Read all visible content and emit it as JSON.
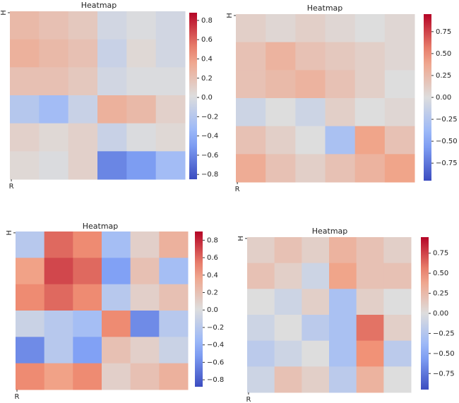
{
  "chart_data": [
    {
      "type": "heatmap",
      "title": "Heatmap",
      "colormap": "coolwarm",
      "categories": [
        "R",
        null,
        null,
        null,
        null,
        null
      ],
      "y_categories": [
        "H",
        null,
        null,
        null,
        null,
        null
      ],
      "zlim": [
        -0.85,
        0.88
      ],
      "zticks": [
        0.8,
        0.6,
        0.4,
        0.2,
        {
          "value": 0,
          "label": "0.0"
        },
        {
          "value": -0.2,
          "label": "−0.2"
        },
        {
          "value": -0.4,
          "label": "−0.4"
        },
        {
          "value": -0.6,
          "label": "−0.6"
        },
        {
          "value": -0.8,
          "label": "−0.8"
        }
      ],
      "values": [
        [
          0.25,
          0.2,
          0.15,
          -0.05,
          0.0,
          -0.05
        ],
        [
          0.3,
          0.25,
          0.2,
          -0.1,
          0.05,
          -0.05
        ],
        [
          0.2,
          0.2,
          0.15,
          -0.05,
          0.0,
          0.0
        ],
        [
          -0.2,
          -0.3,
          -0.1,
          0.3,
          0.25,
          0.1
        ],
        [
          0.1,
          0.05,
          0.1,
          -0.1,
          0.0,
          0.05
        ],
        [
          0.05,
          0.0,
          0.1,
          -0.6,
          -0.5,
          -0.3
        ]
      ]
    },
    {
      "type": "heatmap",
      "title": "Heatmap",
      "colormap": "coolwarm",
      "categories": [
        "R",
        null,
        null,
        null,
        null,
        null
      ],
      "y_categories": [
        "H",
        null,
        null,
        null,
        null,
        null
      ],
      "zlim": [
        -0.95,
        0.95
      ],
      "zticks": [
        0.75,
        {
          "value": 0.5,
          "label": "0.50"
        },
        0.25,
        {
          "value": 0,
          "label": "0.00"
        },
        {
          "value": -0.25,
          "label": "−0.25"
        },
        {
          "value": -0.5,
          "label": "−0.50"
        },
        {
          "value": -0.75,
          "label": "−0.75"
        }
      ],
      "values": [
        [
          0.1,
          0.05,
          0.1,
          0.05,
          0.0,
          0.05
        ],
        [
          0.2,
          0.3,
          0.2,
          0.15,
          0.1,
          0.05
        ],
        [
          0.2,
          0.25,
          0.3,
          0.2,
          0.1,
          0.0
        ],
        [
          -0.1,
          0.0,
          -0.1,
          0.1,
          0.0,
          0.05
        ],
        [
          0.2,
          0.1,
          0.0,
          -0.3,
          0.4,
          0.2
        ],
        [
          0.35,
          0.2,
          0.1,
          0.2,
          0.3,
          0.4
        ]
      ]
    },
    {
      "type": "heatmap",
      "title": "Heatmap",
      "colormap": "coolwarm",
      "categories": [
        "R",
        null,
        null,
        null,
        null,
        null
      ],
      "y_categories": [
        "H",
        null,
        null,
        null,
        null,
        null
      ],
      "zlim": [
        -0.88,
        0.9
      ],
      "zticks": [
        0.8,
        0.6,
        0.4,
        0.2,
        {
          "value": 0,
          "label": "0.0"
        },
        {
          "value": -0.2,
          "label": "−0.2"
        },
        {
          "value": -0.4,
          "label": "−0.4"
        },
        {
          "value": -0.6,
          "label": "−0.6"
        },
        {
          "value": -0.8,
          "label": "−0.8"
        }
      ],
      "values": [
        [
          -0.2,
          0.6,
          0.5,
          -0.3,
          0.1,
          0.3
        ],
        [
          0.4,
          0.7,
          0.6,
          -0.5,
          0.2,
          -0.3
        ],
        [
          0.5,
          0.6,
          0.5,
          -0.2,
          0.1,
          0.2
        ],
        [
          -0.1,
          -0.2,
          -0.3,
          0.5,
          -0.6,
          -0.2
        ],
        [
          -0.6,
          -0.2,
          -0.5,
          0.2,
          0.1,
          -0.1
        ],
        [
          0.5,
          0.4,
          0.5,
          0.1,
          0.2,
          0.3
        ]
      ]
    },
    {
      "type": "heatmap",
      "title": "Heatmap",
      "colormap": "coolwarm",
      "categories": [
        "R",
        null,
        null,
        null,
        null,
        null
      ],
      "y_categories": [
        "H",
        null,
        null,
        null,
        null,
        null
      ],
      "zlim": [
        -0.95,
        0.95
      ],
      "zticks": [
        0.75,
        {
          "value": 0.5,
          "label": "0.50"
        },
        0.25,
        {
          "value": 0,
          "label": "0.00"
        },
        {
          "value": -0.25,
          "label": "−0.25"
        },
        {
          "value": -0.5,
          "label": "−0.50"
        },
        {
          "value": -0.75,
          "label": "−0.75"
        }
      ],
      "values": [
        [
          0.1,
          0.2,
          0.1,
          0.3,
          0.2,
          0.1
        ],
        [
          0.2,
          0.1,
          -0.1,
          0.4,
          0.2,
          0.2
        ],
        [
          0.0,
          -0.1,
          0.1,
          -0.3,
          0.1,
          0.0
        ],
        [
          -0.1,
          0.0,
          -0.2,
          -0.3,
          0.6,
          0.1
        ],
        [
          -0.2,
          -0.1,
          0.0,
          -0.3,
          0.5,
          -0.2
        ],
        [
          -0.1,
          0.2,
          0.1,
          -0.2,
          0.3,
          0.0
        ]
      ]
    }
  ]
}
